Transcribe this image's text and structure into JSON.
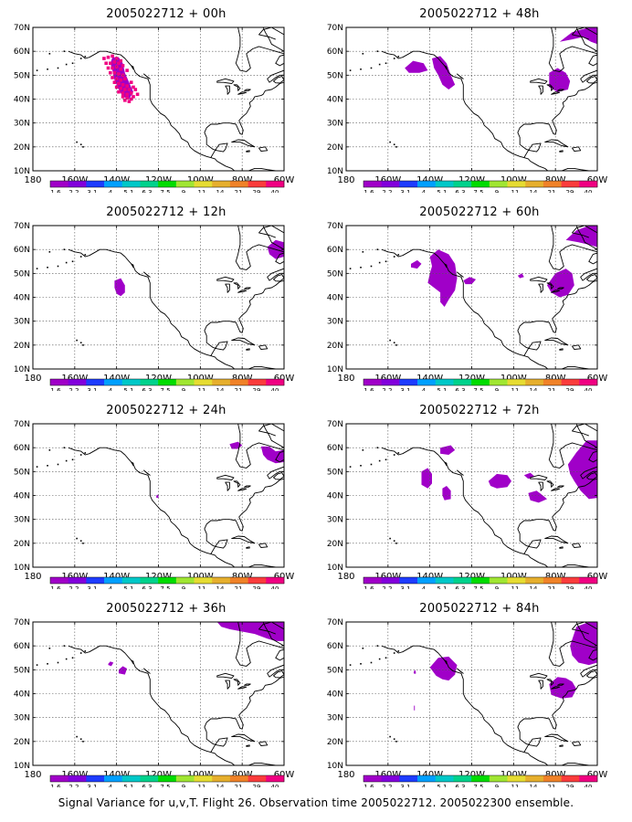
{
  "panels": [
    {
      "title": "2005022712 + 00h"
    },
    {
      "title": "2005022712 + 48h"
    },
    {
      "title": "2005022712 + 12h"
    },
    {
      "title": "2005022712 + 60h"
    },
    {
      "title": "2005022712 + 24h"
    },
    {
      "title": "2005022712 + 72h"
    },
    {
      "title": "2005022712 + 36h"
    },
    {
      "title": "2005022712 + 84h"
    }
  ],
  "map": {
    "lat_labels": [
      "70N",
      "60N",
      "50N",
      "40N",
      "30N",
      "20N",
      "10N"
    ],
    "lon_labels": [
      "180",
      "160W",
      "140W",
      "120W",
      "100W",
      "80W",
      "60W"
    ]
  },
  "colorbar": {
    "labels": [
      "1.6",
      "2.2",
      "3.1",
      "4",
      "5.1",
      "6.3",
      "7.5",
      "9",
      "11",
      "14",
      "21",
      "29",
      "40"
    ],
    "colors": [
      "#a000c8",
      "#8200dc",
      "#1e3cff",
      "#00a0ff",
      "#00c8c8",
      "#00d28c",
      "#00dc00",
      "#a0e632",
      "#e6dc32",
      "#e6af2d",
      "#f08228",
      "#fa3c3c",
      "#f00082"
    ]
  },
  "shading_color": "#a000c8",
  "footer": "Signal Variance for u,v,T. Flight 26. Observation time 2005022712. 2005022300 ensemble."
}
